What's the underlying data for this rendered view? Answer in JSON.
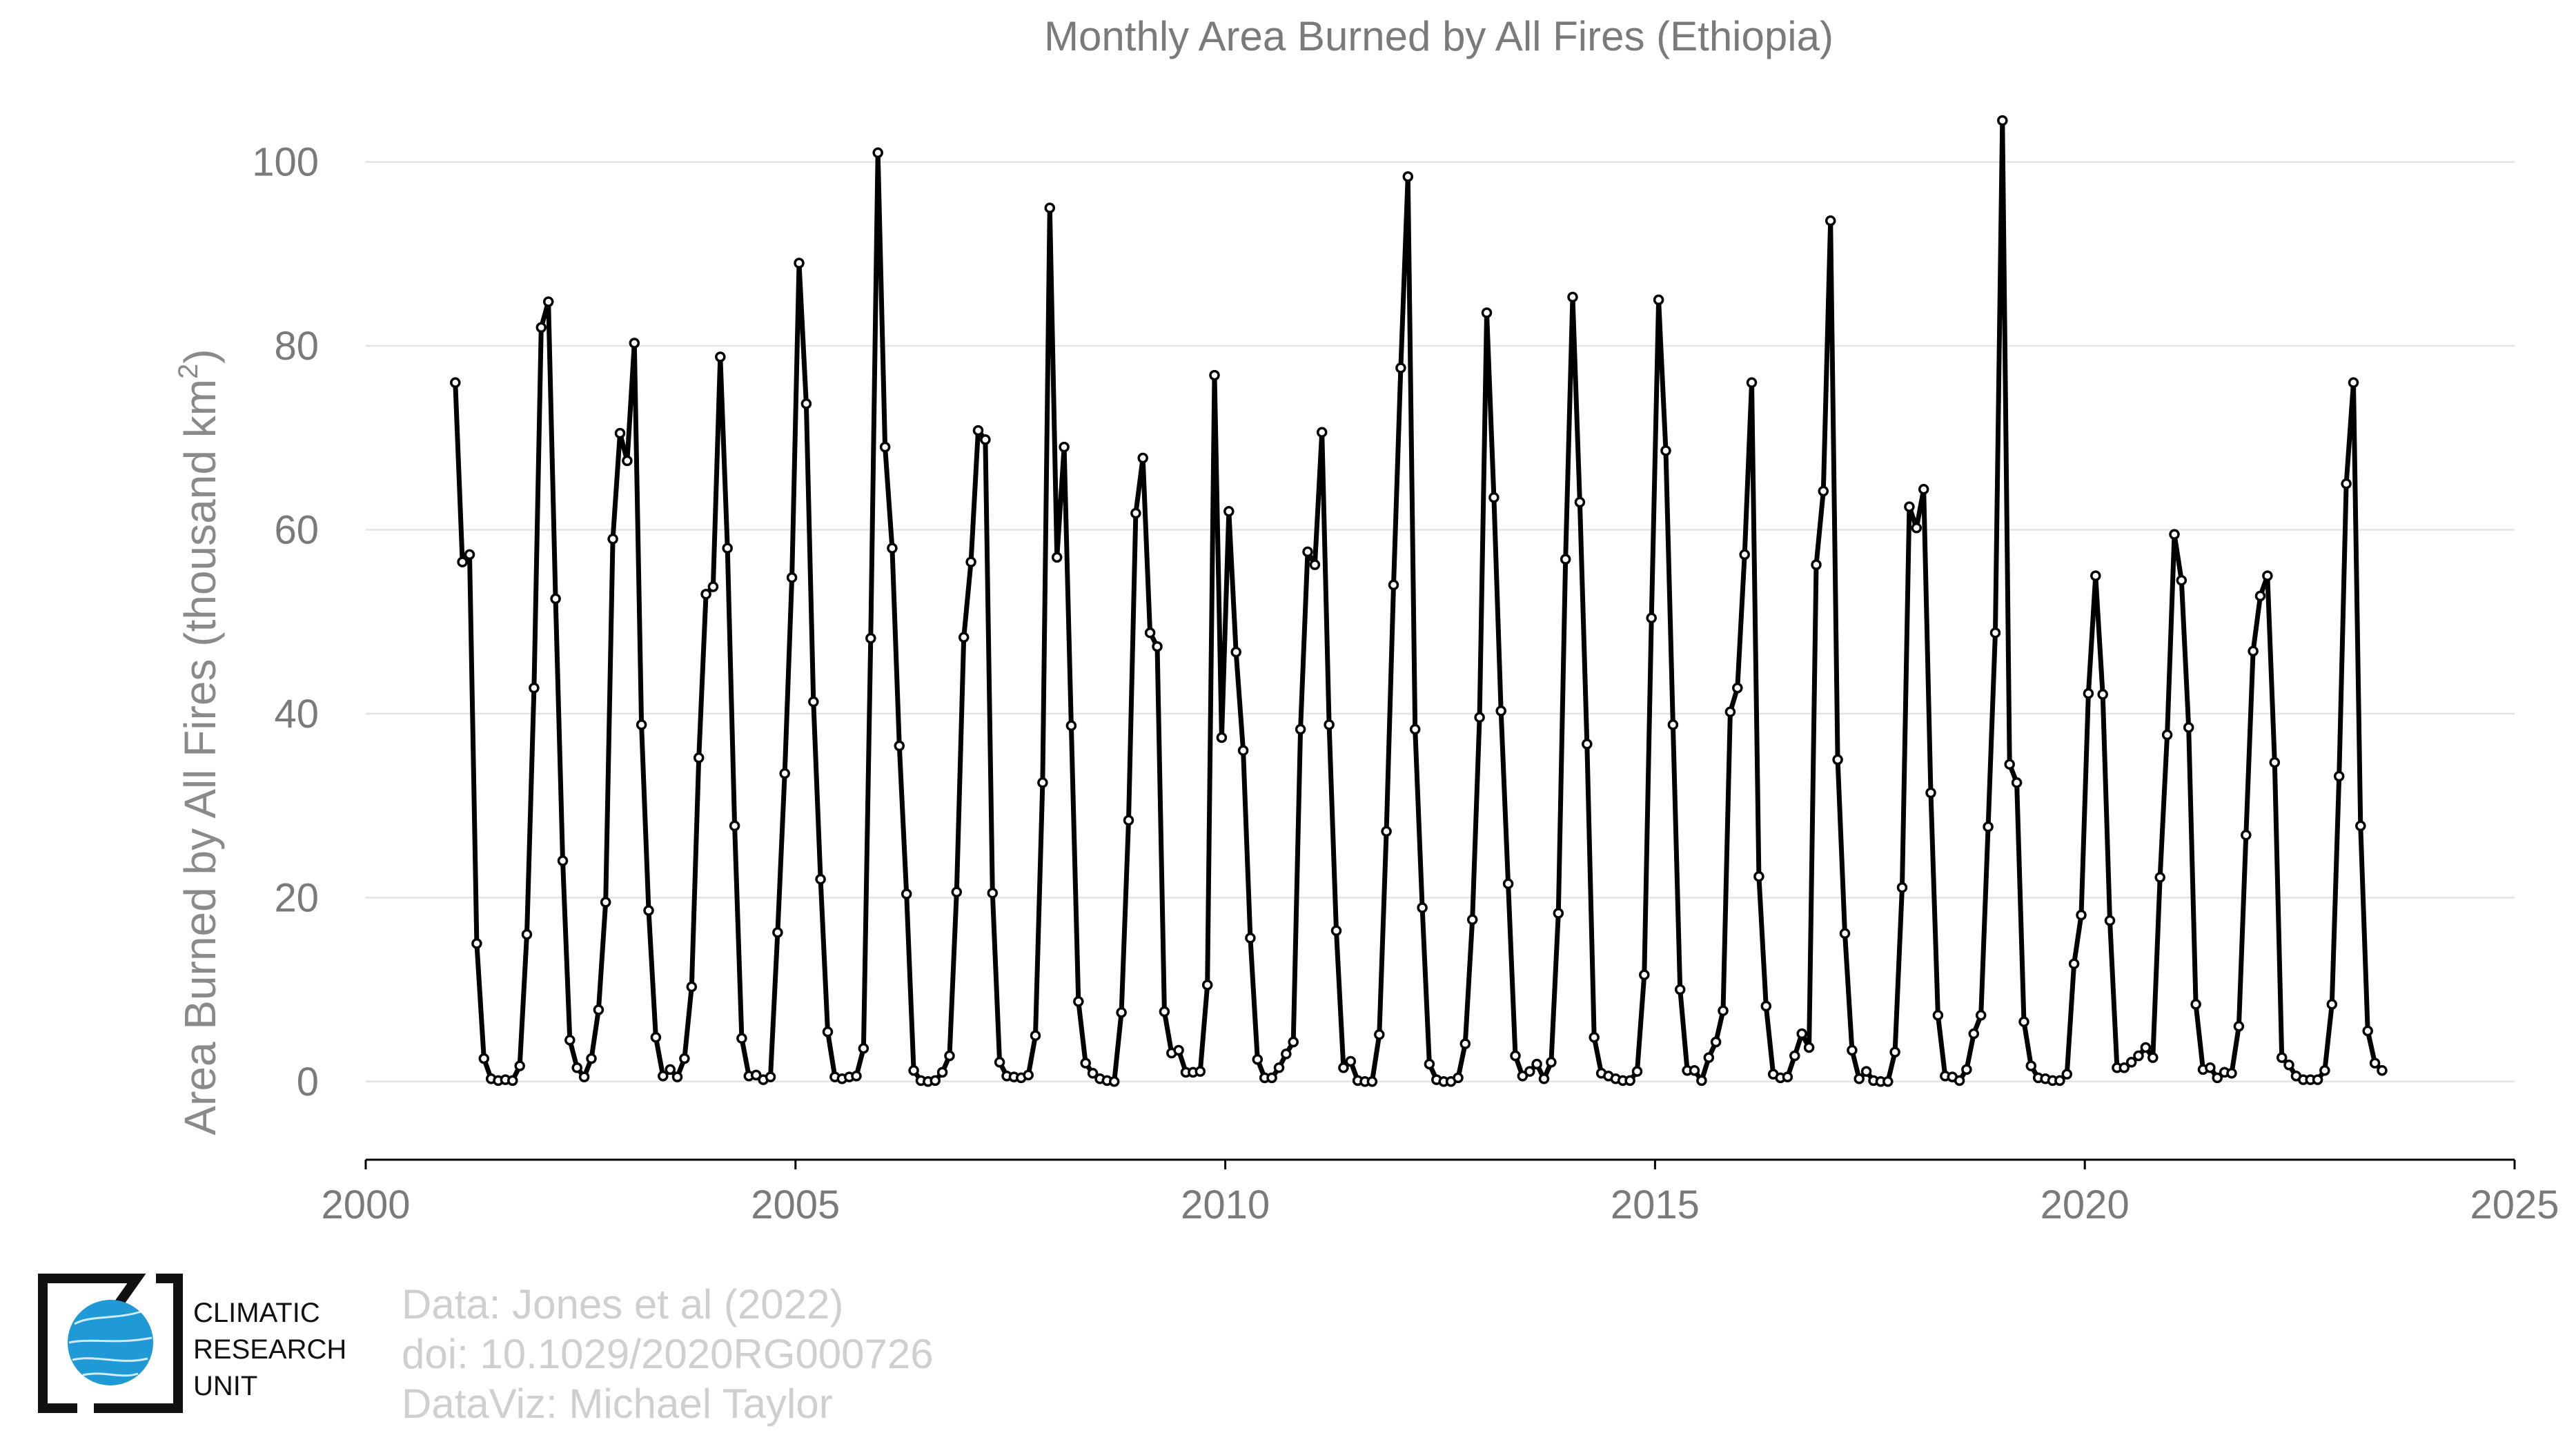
{
  "chart_data": {
    "type": "line",
    "title": "Monthly Area Burned by All Fires (Ethiopia)",
    "xlabel": "",
    "ylabel": "Area Burned by All Fires (thousand km",
    "ylabel_sup": "2",
    "ylabel_close": ")",
    "xlim": [
      2000,
      2025
    ],
    "ylim": [
      -8.5,
      108
    ],
    "xticks": [
      2000,
      2005,
      2010,
      2015,
      2020,
      2025
    ],
    "yticks": [
      0,
      20,
      40,
      60,
      80,
      100
    ],
    "grid": "horizontal",
    "line_color": "#000000",
    "marker": "open-circle",
    "start_date": "2001-01",
    "values": [
      76,
      56.5,
      57.3,
      15,
      2.5,
      0.3,
      0.1,
      0.2,
      0.1,
      1.7,
      16,
      42.8,
      82,
      84.8,
      52.5,
      24,
      4.5,
      1.5,
      0.5,
      2.5,
      7.8,
      19.5,
      59,
      70.5,
      67.5,
      80.3,
      38.8,
      18.6,
      4.8,
      0.6,
      1.3,
      0.5,
      2.5,
      10.3,
      35.2,
      53,
      53.8,
      78.8,
      58,
      27.8,
      4.7,
      0.6,
      0.7,
      0.2,
      0.5,
      16.2,
      33.5,
      54.8,
      89,
      73.7,
      41.3,
      22,
      5.4,
      0.5,
      0.3,
      0.5,
      0.6,
      3.6,
      48.2,
      101,
      69,
      58,
      36.5,
      20.4,
      1.2,
      0.1,
      0,
      0.1,
      1,
      2.8,
      20.6,
      48.3,
      56.5,
      70.8,
      69.8,
      20.5,
      2.1,
      0.6,
      0.5,
      0.4,
      0.7,
      5,
      32.5,
      95,
      57,
      69,
      38.7,
      8.7,
      2,
      0.9,
      0.3,
      0.1,
      0,
      7.5,
      28.4,
      61.8,
      67.8,
      48.8,
      47.3,
      7.6,
      3.1,
      3.4,
      1,
      1,
      1.1,
      10.5,
      76.8,
      37.4,
      62,
      46.7,
      36,
      15.6,
      2.4,
      0.4,
      0.4,
      1.5,
      3,
      4.3,
      38.3,
      57.6,
      56.2,
      70.6,
      38.8,
      16.4,
      1.5,
      2.2,
      0.1,
      0,
      0,
      5.1,
      27.2,
      54,
      77.6,
      98.4,
      38.3,
      18.9,
      1.9,
      0.2,
      0,
      0,
      0.4,
      4.1,
      17.6,
      39.6,
      83.6,
      63.5,
      40.3,
      21.5,
      2.8,
      0.6,
      1.1,
      1.9,
      0.3,
      2.1,
      18.3,
      56.8,
      85.3,
      63,
      36.7,
      4.8,
      0.9,
      0.6,
      0.3,
      0.1,
      0.1,
      1.1,
      11.6,
      50.4,
      85,
      68.6,
      38.8,
      10,
      1.2,
      1.2,
      0.1,
      2.6,
      4.3,
      7.7,
      40.2,
      42.8,
      57.3,
      76,
      22.3,
      8.2,
      0.8,
      0.4,
      0.5,
      2.8,
      5.2,
      3.7,
      56.2,
      64.2,
      93.6,
      35,
      16.1,
      3.4,
      0.3,
      1.1,
      0.1,
      0,
      0,
      3.2,
      21.1,
      62.5,
      60.2,
      64.4,
      31.4,
      7.2,
      0.6,
      0.5,
      0.1,
      1.3,
      5.2,
      7.2,
      27.7,
      48.8,
      104.5,
      34.5,
      32.5,
      6.5,
      1.7,
      0.4,
      0.3,
      0.1,
      0.1,
      0.8,
      12.8,
      18.1,
      42.2,
      55,
      42.1,
      17.5,
      1.5,
      1.5,
      2.1,
      2.8,
      3.7,
      2.6,
      22.2,
      37.7,
      59.5,
      54.5,
      38.5,
      8.4,
      1.3,
      1.5,
      0.4,
      1,
      0.9,
      6,
      26.8,
      46.8,
      52.8,
      55,
      34.7,
      2.6,
      1.8,
      0.6,
      0.2,
      0.2,
      0.2,
      1.2,
      8.4,
      33.2,
      65,
      76,
      27.8,
      5.5,
      2,
      1.2
    ]
  },
  "credits": {
    "line1": "Data: Jones et al (2022)",
    "line2": "doi: 10.1029/2020RG000726",
    "line3": "DataViz: Michael Taylor"
  },
  "logo": {
    "line1": "CLIMATIC",
    "line2": "RESEARCH",
    "line3": "UNIT",
    "globe_color": "#1f9ad6"
  }
}
